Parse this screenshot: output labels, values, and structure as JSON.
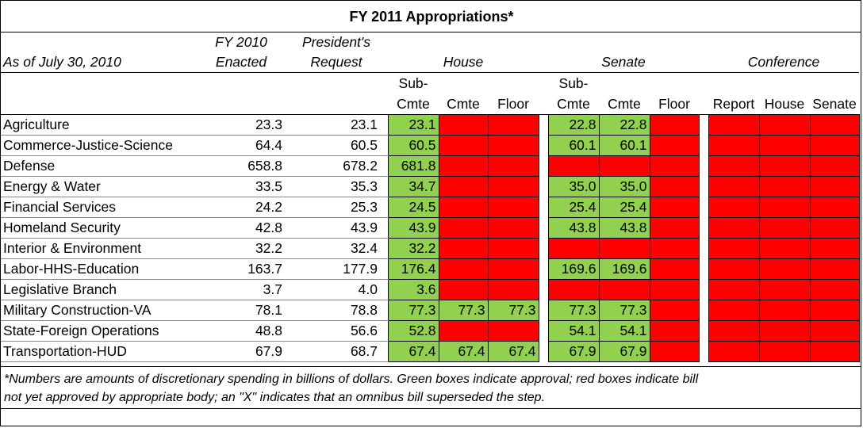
{
  "title": "FY 2011 Appropriations*",
  "as_of": "As of July 30, 2010",
  "headers": {
    "fy2010": [
      "FY 2010",
      "Enacted"
    ],
    "request": [
      "President's",
      "Request"
    ],
    "house": "House",
    "senate": "Senate",
    "conference": "Conference",
    "house_cols": [
      [
        "Sub-",
        "Cmte"
      ],
      "Cmte",
      "Floor"
    ],
    "senate_cols": [
      [
        "Sub-",
        "Cmte"
      ],
      "Cmte",
      "Floor"
    ],
    "conference_cols": [
      "Report",
      "House",
      "Senate"
    ]
  },
  "rows": [
    {
      "name": "Agriculture",
      "fy2010": "23.3",
      "request": "23.1",
      "house": [
        {
          "v": "23.1",
          "s": "green"
        },
        {
          "v": "",
          "s": "red"
        },
        {
          "v": "",
          "s": "red"
        }
      ],
      "senate": [
        {
          "v": "22.8",
          "s": "green"
        },
        {
          "v": "22.8",
          "s": "green"
        },
        {
          "v": "",
          "s": "red"
        }
      ],
      "conference": [
        {
          "v": "",
          "s": "red"
        },
        {
          "v": "",
          "s": "red"
        },
        {
          "v": "",
          "s": "red"
        }
      ]
    },
    {
      "name": "Commerce-Justice-Science",
      "fy2010": "64.4",
      "request": "60.5",
      "house": [
        {
          "v": "60.5",
          "s": "green"
        },
        {
          "v": "",
          "s": "red"
        },
        {
          "v": "",
          "s": "red"
        }
      ],
      "senate": [
        {
          "v": "60.1",
          "s": "green"
        },
        {
          "v": "60.1",
          "s": "green"
        },
        {
          "v": "",
          "s": "red"
        }
      ],
      "conference": [
        {
          "v": "",
          "s": "red"
        },
        {
          "v": "",
          "s": "red"
        },
        {
          "v": "",
          "s": "red"
        }
      ]
    },
    {
      "name": "Defense",
      "fy2010": "658.8",
      "request": "678.2",
      "house": [
        {
          "v": "681.8",
          "s": "green"
        },
        {
          "v": "",
          "s": "red"
        },
        {
          "v": "",
          "s": "red"
        }
      ],
      "senate": [
        {
          "v": "",
          "s": "red"
        },
        {
          "v": "",
          "s": "red"
        },
        {
          "v": "",
          "s": "red"
        }
      ],
      "conference": [
        {
          "v": "",
          "s": "red"
        },
        {
          "v": "",
          "s": "red"
        },
        {
          "v": "",
          "s": "red"
        }
      ]
    },
    {
      "name": "Energy & Water",
      "fy2010": "33.5",
      "request": "35.3",
      "house": [
        {
          "v": "34.7",
          "s": "green"
        },
        {
          "v": "",
          "s": "red"
        },
        {
          "v": "",
          "s": "red"
        }
      ],
      "senate": [
        {
          "v": "35.0",
          "s": "green"
        },
        {
          "v": "35.0",
          "s": "green"
        },
        {
          "v": "",
          "s": "red"
        }
      ],
      "conference": [
        {
          "v": "",
          "s": "red"
        },
        {
          "v": "",
          "s": "red"
        },
        {
          "v": "",
          "s": "red"
        }
      ]
    },
    {
      "name": "Financial Services",
      "fy2010": "24.2",
      "request": "25.3",
      "house": [
        {
          "v": "24.5",
          "s": "green"
        },
        {
          "v": "",
          "s": "red"
        },
        {
          "v": "",
          "s": "red"
        }
      ],
      "senate": [
        {
          "v": "25.4",
          "s": "green"
        },
        {
          "v": "25.4",
          "s": "green"
        },
        {
          "v": "",
          "s": "red"
        }
      ],
      "conference": [
        {
          "v": "",
          "s": "red"
        },
        {
          "v": "",
          "s": "red"
        },
        {
          "v": "",
          "s": "red"
        }
      ]
    },
    {
      "name": "Homeland Security",
      "fy2010": "42.8",
      "request": "43.9",
      "house": [
        {
          "v": "43.9",
          "s": "green"
        },
        {
          "v": "",
          "s": "red"
        },
        {
          "v": "",
          "s": "red"
        }
      ],
      "senate": [
        {
          "v": "43.8",
          "s": "green"
        },
        {
          "v": "43.8",
          "s": "green"
        },
        {
          "v": "",
          "s": "red"
        }
      ],
      "conference": [
        {
          "v": "",
          "s": "red"
        },
        {
          "v": "",
          "s": "red"
        },
        {
          "v": "",
          "s": "red"
        }
      ]
    },
    {
      "name": "Interior & Environment",
      "fy2010": "32.2",
      "request": "32.4",
      "house": [
        {
          "v": "32.2",
          "s": "green"
        },
        {
          "v": "",
          "s": "red"
        },
        {
          "v": "",
          "s": "red"
        }
      ],
      "senate": [
        {
          "v": "",
          "s": "red"
        },
        {
          "v": "",
          "s": "red"
        },
        {
          "v": "",
          "s": "red"
        }
      ],
      "conference": [
        {
          "v": "",
          "s": "red"
        },
        {
          "v": "",
          "s": "red"
        },
        {
          "v": "",
          "s": "red"
        }
      ]
    },
    {
      "name": "Labor-HHS-Education",
      "fy2010": "163.7",
      "request": "177.9",
      "house": [
        {
          "v": "176.4",
          "s": "green"
        },
        {
          "v": "",
          "s": "red"
        },
        {
          "v": "",
          "s": "red"
        }
      ],
      "senate": [
        {
          "v": "169.6",
          "s": "green"
        },
        {
          "v": "169.6",
          "s": "green"
        },
        {
          "v": "",
          "s": "red"
        }
      ],
      "conference": [
        {
          "v": "",
          "s": "red"
        },
        {
          "v": "",
          "s": "red"
        },
        {
          "v": "",
          "s": "red"
        }
      ]
    },
    {
      "name": "Legislative Branch",
      "fy2010": "3.7",
      "request": "4.0",
      "house": [
        {
          "v": "3.6",
          "s": "green"
        },
        {
          "v": "",
          "s": "red"
        },
        {
          "v": "",
          "s": "red"
        }
      ],
      "senate": [
        {
          "v": "",
          "s": "red"
        },
        {
          "v": "",
          "s": "red"
        },
        {
          "v": "",
          "s": "red"
        }
      ],
      "conference": [
        {
          "v": "",
          "s": "red"
        },
        {
          "v": "",
          "s": "red"
        },
        {
          "v": "",
          "s": "red"
        }
      ]
    },
    {
      "name": "Military Construction-VA",
      "fy2010": "78.1",
      "request": "78.8",
      "house": [
        {
          "v": "77.3",
          "s": "green"
        },
        {
          "v": "77.3",
          "s": "green"
        },
        {
          "v": "77.3",
          "s": "green"
        }
      ],
      "senate": [
        {
          "v": "77.3",
          "s": "green"
        },
        {
          "v": "77.3",
          "s": "green"
        },
        {
          "v": "",
          "s": "red"
        }
      ],
      "conference": [
        {
          "v": "",
          "s": "red"
        },
        {
          "v": "",
          "s": "red"
        },
        {
          "v": "",
          "s": "red"
        }
      ]
    },
    {
      "name": "State-Foreign Operations",
      "fy2010": "48.8",
      "request": "56.6",
      "house": [
        {
          "v": "52.8",
          "s": "green"
        },
        {
          "v": "",
          "s": "red"
        },
        {
          "v": "",
          "s": "red"
        }
      ],
      "senate": [
        {
          "v": "54.1",
          "s": "green"
        },
        {
          "v": "54.1",
          "s": "green"
        },
        {
          "v": "",
          "s": "red"
        }
      ],
      "conference": [
        {
          "v": "",
          "s": "red"
        },
        {
          "v": "",
          "s": "red"
        },
        {
          "v": "",
          "s": "red"
        }
      ]
    },
    {
      "name": "Transportation-HUD",
      "fy2010": "67.9",
      "request": "68.7",
      "house": [
        {
          "v": "67.4",
          "s": "green"
        },
        {
          "v": "67.4",
          "s": "green"
        },
        {
          "v": "67.4",
          "s": "green"
        }
      ],
      "senate": [
        {
          "v": "67.9",
          "s": "green"
        },
        {
          "v": "67.9",
          "s": "green"
        },
        {
          "v": "",
          "s": "red"
        }
      ],
      "conference": [
        {
          "v": "",
          "s": "red"
        },
        {
          "v": "",
          "s": "red"
        },
        {
          "v": "",
          "s": "red"
        }
      ]
    }
  ],
  "colors": {
    "approved": "#92d050",
    "not_approved": "#ff0000"
  },
  "footnote": [
    "*Numbers are amounts of discretionary spending in billions of dollars. Green boxes indicate approval; red boxes indicate bill",
    "not yet approved by appropriate body; an \"X\" indicates that an omnibus bill superseded the step."
  ]
}
